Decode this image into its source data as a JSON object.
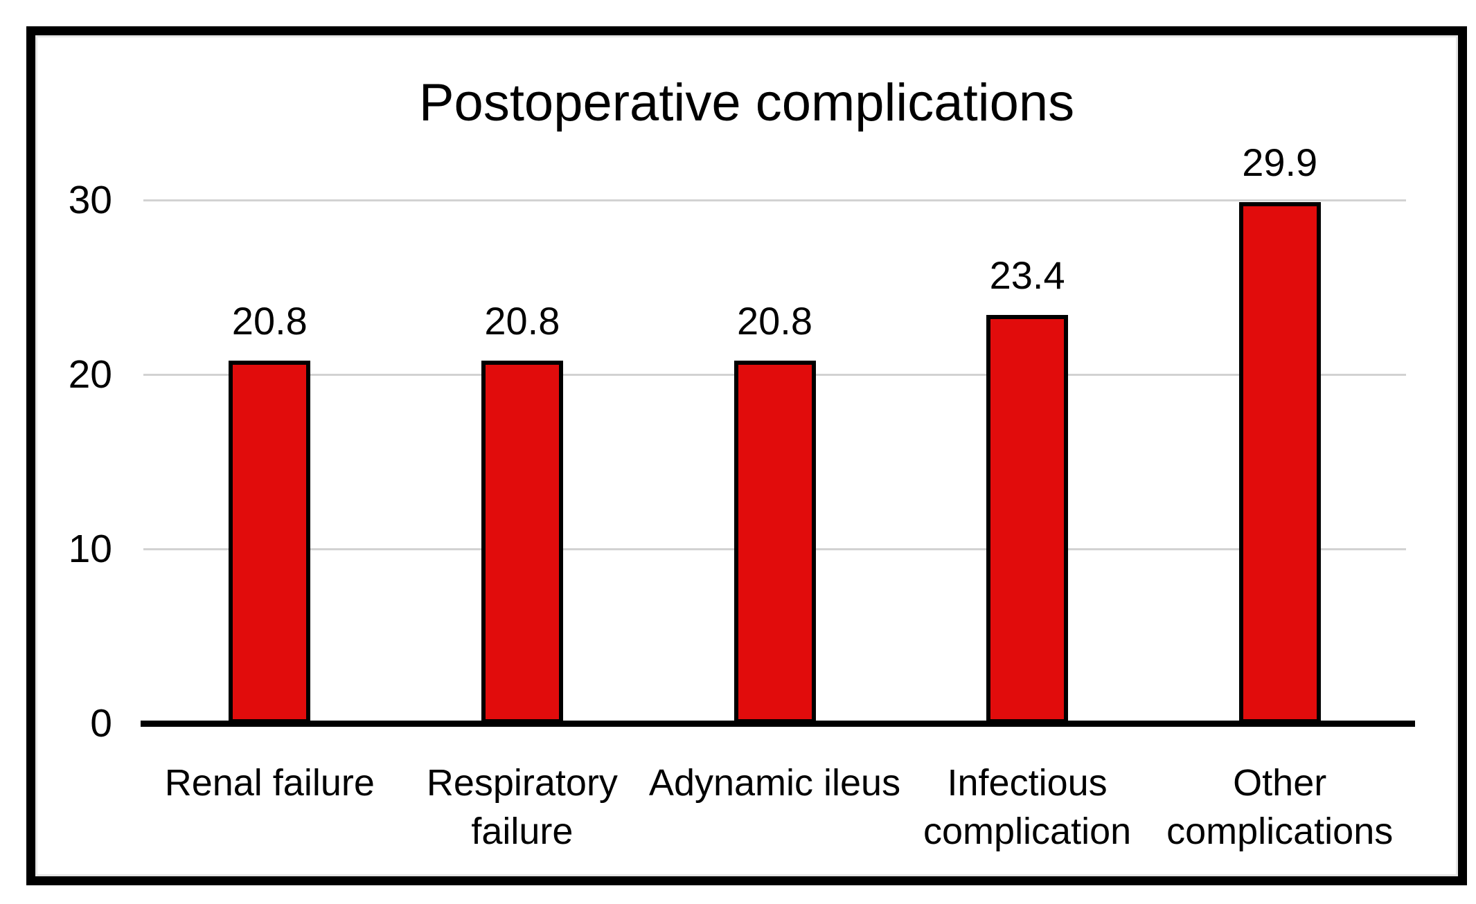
{
  "figure": {
    "background": "#ffffff",
    "frame_border_color": "#000000"
  },
  "chart_data": {
    "type": "bar",
    "title": "Postoperative complications",
    "categories": [
      "Renal failure",
      "Respiratory failure",
      "Adynamic ileus",
      "Infectious complication",
      "Other complications"
    ],
    "category_label_lines": [
      [
        "Renal failure"
      ],
      [
        "Respiratory",
        "failure"
      ],
      [
        "Adynamic ileus"
      ],
      [
        "Infectious",
        "complication"
      ],
      [
        "Other",
        "complications"
      ]
    ],
    "values": [
      20.8,
      20.8,
      20.8,
      23.4,
      29.9
    ],
    "data_labels": [
      "20.8",
      "20.8",
      "20.8",
      "23.4",
      "29.9"
    ],
    "xlabel": "",
    "ylabel": "",
    "ylim": [
      0,
      30
    ],
    "yticks": [
      0,
      10,
      20,
      30
    ],
    "grid": true,
    "legend_position": "none",
    "bar_color": "#e10c0c",
    "bar_border_color": "#000000",
    "gridline_color": "#d2d2d2",
    "axis_line_color": "#000000",
    "text_color": "#000000"
  }
}
